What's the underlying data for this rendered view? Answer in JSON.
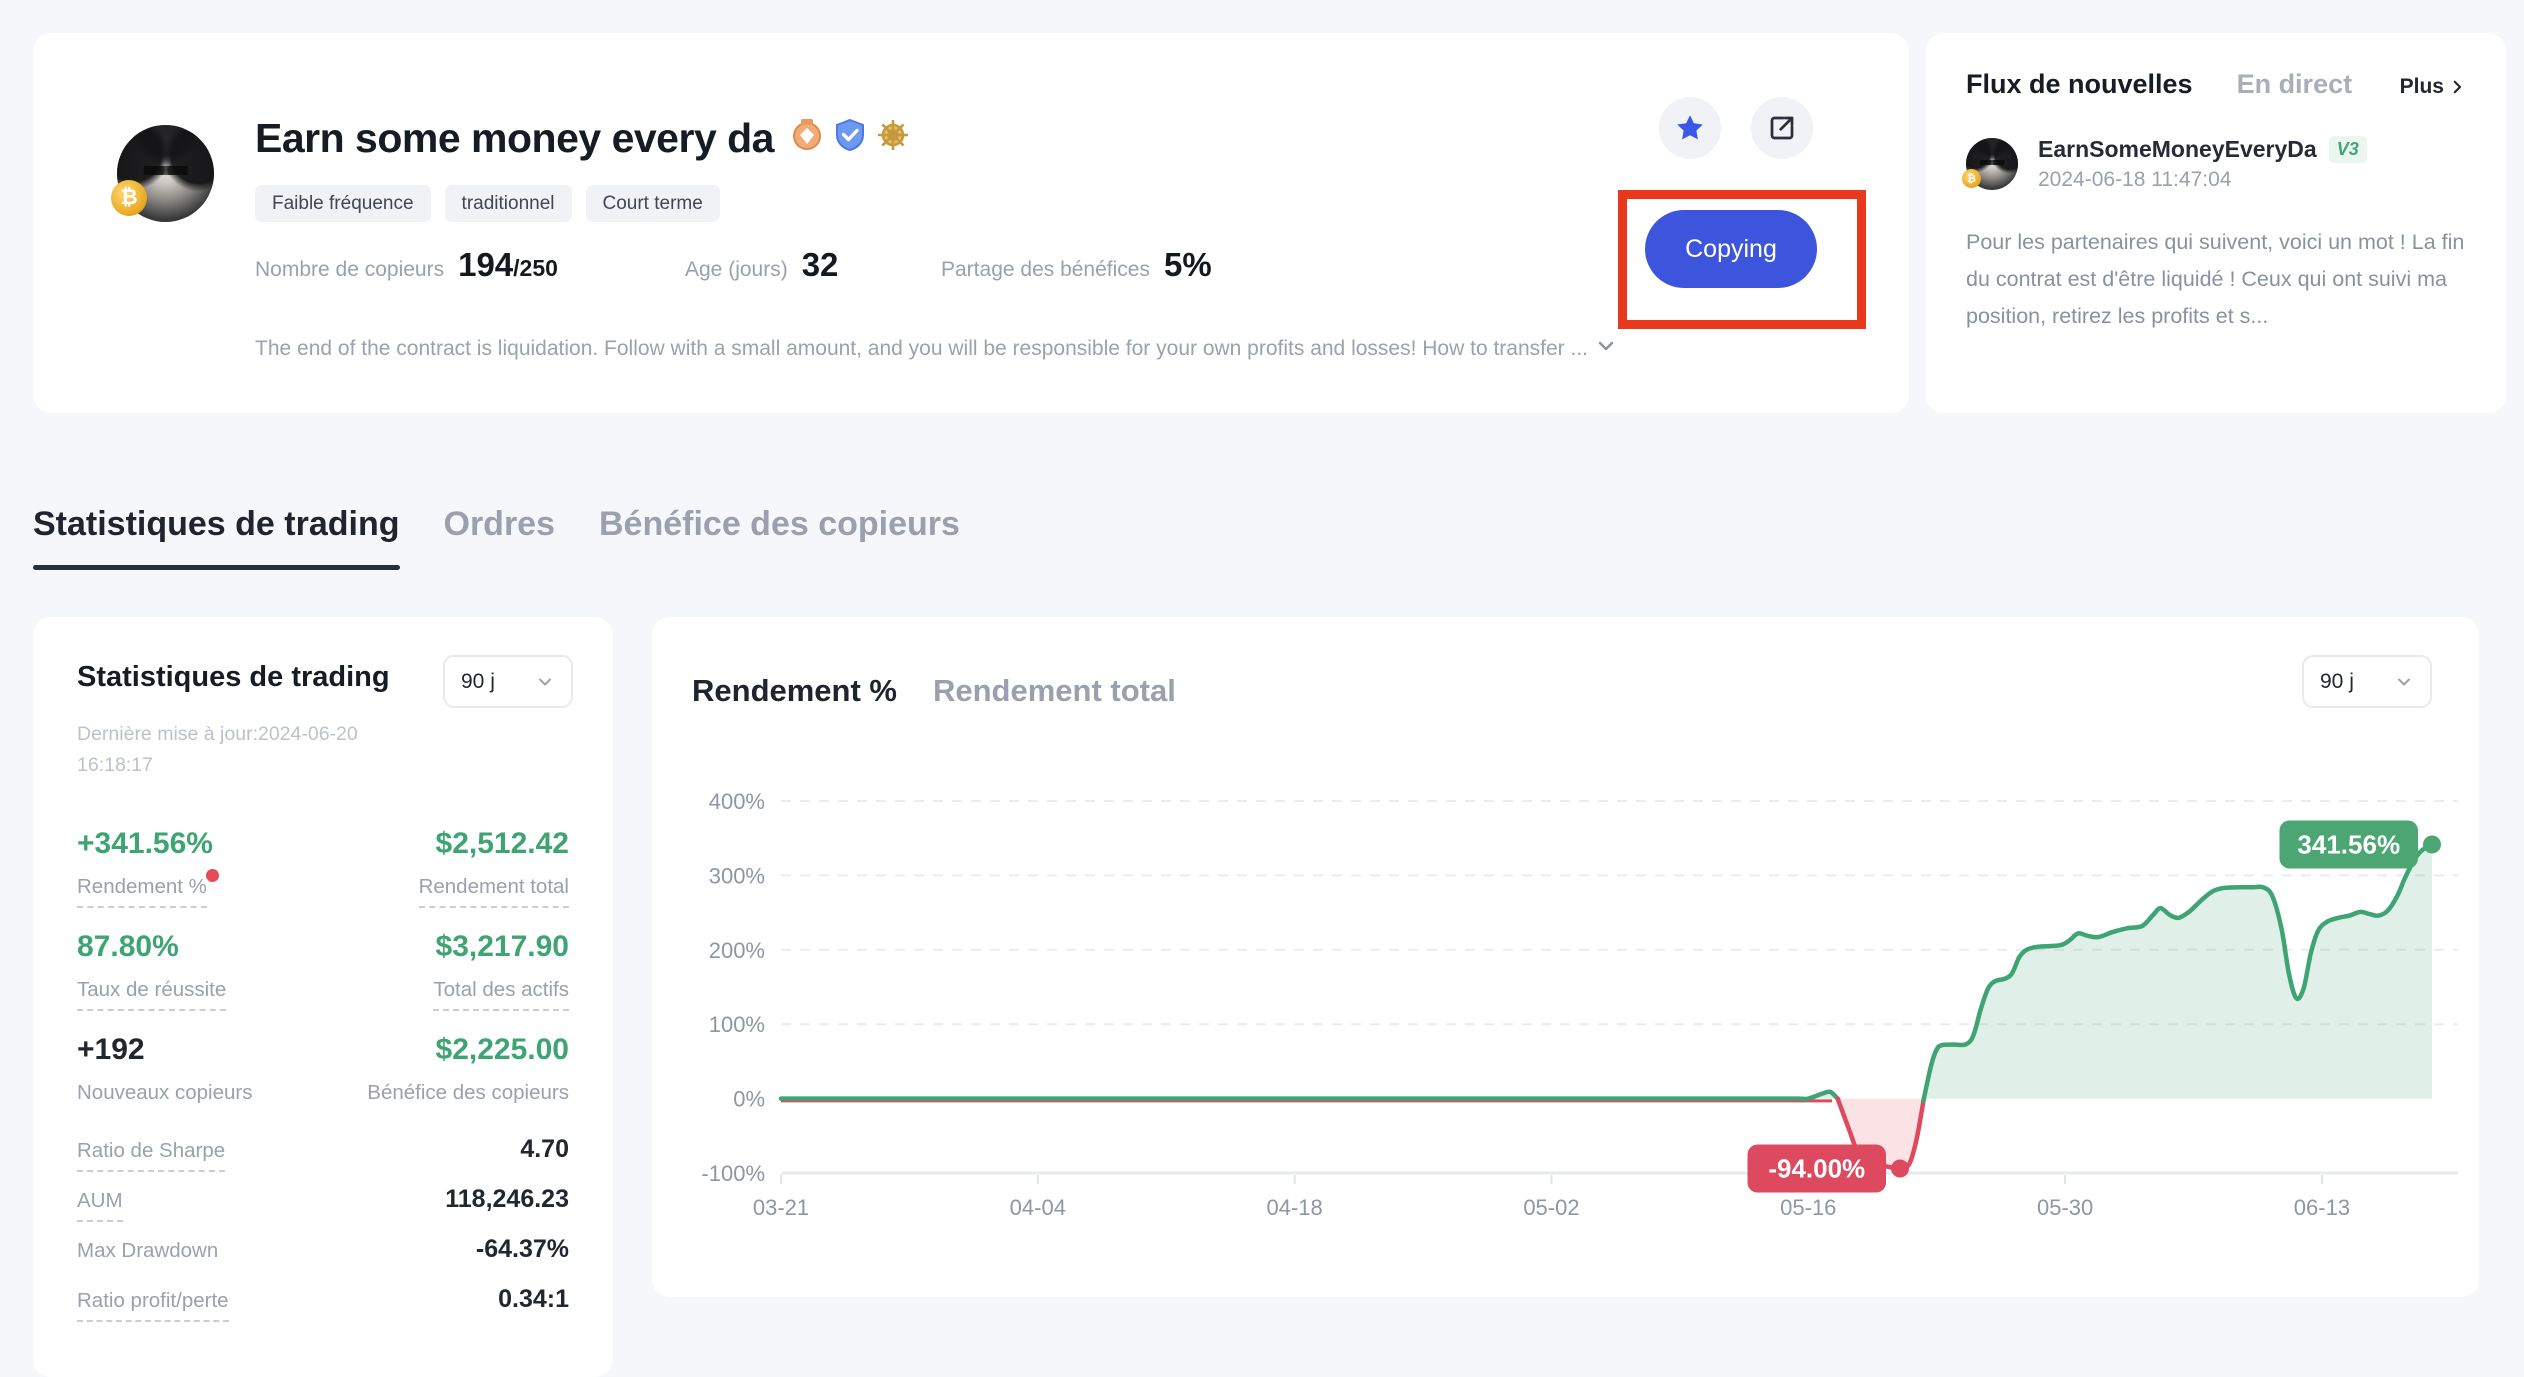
{
  "header": {
    "title": "Earn some money every da",
    "badge_icons": [
      "medal",
      "verified-shield",
      "gold-helm"
    ],
    "tags": [
      "Faible fréquence",
      "traditionnel",
      "Court terme"
    ],
    "stats": [
      {
        "label": "Nombre de copieurs",
        "value": "194",
        "suffix": "/250"
      },
      {
        "label": "Age (jours)",
        "value": "32",
        "suffix": ""
      },
      {
        "label": "Partage des bénéfices",
        "value": "5%",
        "suffix": ""
      }
    ],
    "description": "The end of the contract is liquidation. Follow with a small amount, and you will be responsible for your own profits and losses! How to transfer ...",
    "copy_button_label": "Copying"
  },
  "news": {
    "title": "Flux de nouvelles",
    "live_tab": "En direct",
    "more_link": "Plus",
    "post": {
      "author": "EarnSomeMoneyEveryDa",
      "level_badge": "V3",
      "timestamp": "2024-06-18 11:47:04",
      "body": "Pour les partenaires qui suivent, voici un mot ! La fin du contrat est d'être liquidé ! Ceux qui ont suivi ma position, retirez les profits et s..."
    }
  },
  "tabs": [
    {
      "label": "Statistiques de trading"
    },
    {
      "label": "Ordres"
    },
    {
      "label": "Bénéfice des copieurs"
    }
  ],
  "stats_card": {
    "title": "Statistiques de trading",
    "period": "90 j",
    "updated": "Dernière mise à jour:2024-06-20 16:18:17",
    "metrics": [
      {
        "value": "+341.56%",
        "label": "Rendement %"
      },
      {
        "value": "$2,512.42",
        "label": "Rendement total"
      },
      {
        "value": "87.80%",
        "label": "Taux de réussite"
      },
      {
        "value": "$3,217.90",
        "label": "Total des actifs"
      },
      {
        "value": "+192",
        "label": "Nouveaux copieurs"
      },
      {
        "value": "$2,225.00",
        "label": "Bénéfice des copieurs"
      }
    ],
    "rows": [
      {
        "label": "Ratio de Sharpe",
        "value": "4.70"
      },
      {
        "label": "AUM",
        "value": "118,246.23"
      },
      {
        "label": "Max Drawdown",
        "value": "-64.37%"
      },
      {
        "label": "Ratio profit/perte",
        "value": "0.34:1"
      }
    ]
  },
  "chart_card": {
    "tab_percent": "Rendement %",
    "tab_total": "Rendement total",
    "period": "90 j"
  },
  "chart_data": {
    "type": "area",
    "title": "Rendement %",
    "xlabel": "",
    "ylabel": "",
    "x_range_days": [
      0,
      90
    ],
    "y_range_pct": [
      -100,
      400
    ],
    "grid": "dashed-horizontal",
    "legend": "none",
    "x_ticks": [
      {
        "day": 0,
        "label": "03-21"
      },
      {
        "day": 14,
        "label": "04-04"
      },
      {
        "day": 28,
        "label": "04-18"
      },
      {
        "day": 42,
        "label": "05-02"
      },
      {
        "day": 56,
        "label": "05-16"
      },
      {
        "day": 70,
        "label": "05-30"
      },
      {
        "day": 84,
        "label": "06-13"
      }
    ],
    "y_ticks": [
      {
        "value": 400,
        "label": "400%"
      },
      {
        "value": 300,
        "label": "300%"
      },
      {
        "value": 200,
        "label": "200%"
      },
      {
        "value": 100,
        "label": "100%"
      },
      {
        "value": 0,
        "label": "0%"
      },
      {
        "value": -100,
        "label": "-100%"
      }
    ],
    "series": [
      {
        "name": "Rendement %",
        "color_positive": "#3fa473",
        "color_negative": "#e0485c",
        "fill_positive": "rgba(63,164,115,0.16)",
        "fill_negative": "rgba(224,72,92,0.16)",
        "points": [
          [
            0,
            0
          ],
          [
            14,
            0
          ],
          [
            28,
            0
          ],
          [
            42,
            0
          ],
          [
            50,
            0
          ],
          [
            54,
            0
          ],
          [
            55.5,
            0
          ],
          [
            56,
            0
          ],
          [
            56.8,
            7
          ],
          [
            57.2,
            9
          ],
          [
            57.6,
            0
          ],
          [
            58.2,
            -40
          ],
          [
            58.8,
            -78
          ],
          [
            59.4,
            -88
          ],
          [
            60.2,
            -91
          ],
          [
            61,
            -94
          ],
          [
            61.5,
            -88
          ],
          [
            61.9,
            -55
          ],
          [
            62.3,
            0
          ],
          [
            62.7,
            45
          ],
          [
            63,
            66
          ],
          [
            63.3,
            72
          ],
          [
            64,
            72.5
          ],
          [
            64.6,
            73
          ],
          [
            65,
            85
          ],
          [
            65.4,
            120
          ],
          [
            65.8,
            148
          ],
          [
            66.2,
            158
          ],
          [
            66.7,
            161
          ],
          [
            67.1,
            168
          ],
          [
            67.5,
            190
          ],
          [
            67.9,
            200
          ],
          [
            68.5,
            204
          ],
          [
            69.7,
            206
          ],
          [
            70.2,
            212
          ],
          [
            70.7,
            222
          ],
          [
            71.2,
            219
          ],
          [
            71.8,
            217
          ],
          [
            72.6,
            224
          ],
          [
            73.4,
            229
          ],
          [
            74.2,
            232
          ],
          [
            74.8,
            247
          ],
          [
            75.2,
            256
          ],
          [
            75.7,
            247
          ],
          [
            76.2,
            243
          ],
          [
            76.8,
            252
          ],
          [
            77.4,
            266
          ],
          [
            78,
            278
          ],
          [
            78.6,
            283
          ],
          [
            79.5,
            284
          ],
          [
            80.2,
            284
          ],
          [
            80.8,
            284
          ],
          [
            81.3,
            272
          ],
          [
            81.8,
            228
          ],
          [
            82.2,
            168
          ],
          [
            82.6,
            135
          ],
          [
            83,
            148
          ],
          [
            83.4,
            196
          ],
          [
            83.8,
            226
          ],
          [
            84.3,
            238
          ],
          [
            84.9,
            243
          ],
          [
            85.5,
            246
          ],
          [
            86.1,
            251
          ],
          [
            86.6,
            248
          ],
          [
            87.1,
            246
          ],
          [
            87.6,
            253
          ],
          [
            88.1,
            272
          ],
          [
            88.5,
            295
          ],
          [
            88.9,
            315
          ],
          [
            89.3,
            330
          ],
          [
            89.7,
            338
          ],
          [
            90,
            341.56
          ]
        ]
      }
    ],
    "sub_line": {
      "color": "#e0485c",
      "points": [
        [
          0,
          -3
        ],
        [
          14,
          -3
        ],
        [
          28,
          -3
        ],
        [
          42,
          -3
        ],
        [
          50,
          -3
        ],
        [
          56,
          -3
        ],
        [
          57.3,
          -3
        ]
      ]
    },
    "annotations": [
      {
        "day": 61,
        "value": -94,
        "label": "-94.00%",
        "color": "#dd4a60"
      },
      {
        "day": 90,
        "value": 341.56,
        "label": "341.56%",
        "color": "#4ca673"
      }
    ]
  }
}
